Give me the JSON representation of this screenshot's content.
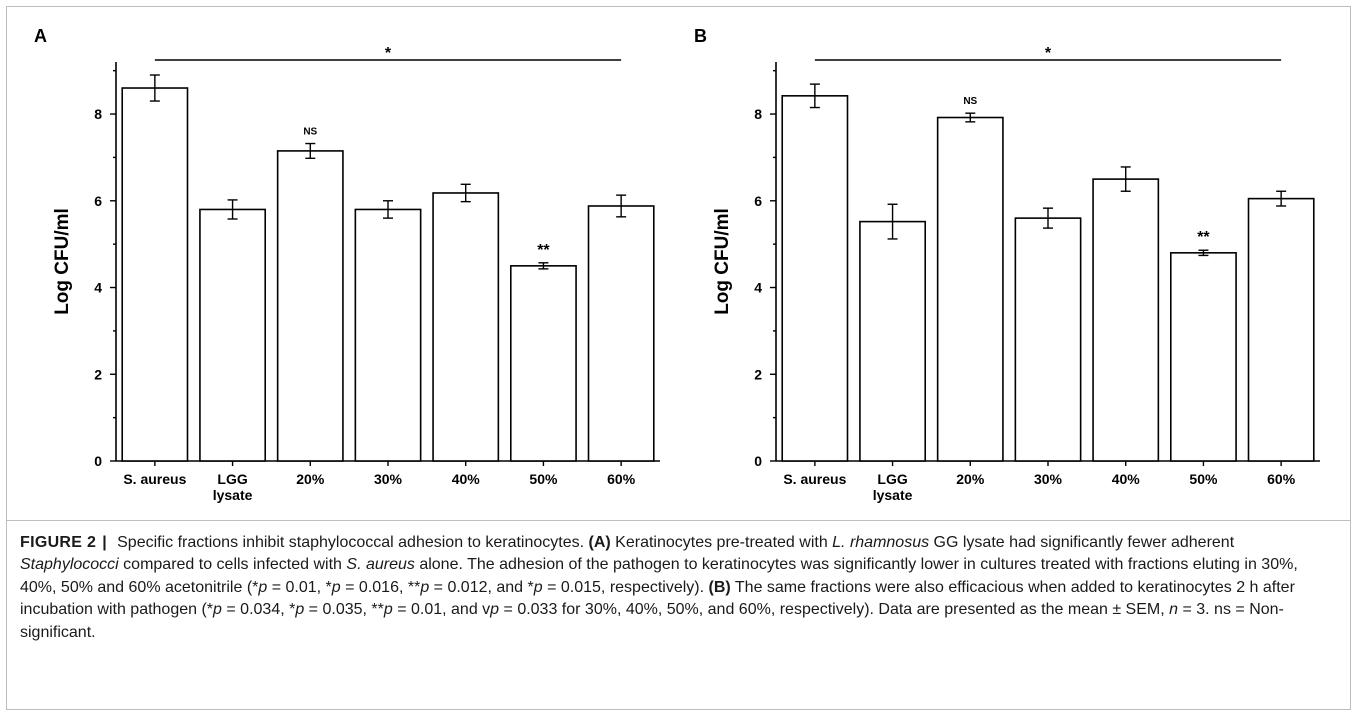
{
  "chart_data": [
    {
      "panel": "A",
      "type": "bar",
      "categories": [
        [
          "S. aureus"
        ],
        [
          "LGG",
          "lysate"
        ],
        [
          "20%"
        ],
        [
          "30%"
        ],
        [
          "40%"
        ],
        [
          "50%"
        ],
        [
          "60%"
        ]
      ],
      "values": [
        8.6,
        5.8,
        7.15,
        5.8,
        6.18,
        4.5,
        5.88
      ],
      "errors": [
        0.3,
        0.22,
        0.17,
        0.2,
        0.2,
        0.07,
        0.25
      ],
      "annotations": [
        "",
        "",
        "NS",
        "",
        "",
        "**",
        ""
      ],
      "significance_bar": "*",
      "ylabel": "Log CFU/ml",
      "ylim": [
        0,
        9.2
      ],
      "yticks": [
        0,
        2,
        4,
        6,
        8
      ],
      "grid": false
    },
    {
      "panel": "B",
      "type": "bar",
      "categories": [
        [
          "S. aureus"
        ],
        [
          "LGG",
          "lysate"
        ],
        [
          "20%"
        ],
        [
          "30%"
        ],
        [
          "40%"
        ],
        [
          "50%"
        ],
        [
          "60%"
        ]
      ],
      "values": [
        8.42,
        5.52,
        7.92,
        5.6,
        6.5,
        4.8,
        6.05
      ],
      "errors": [
        0.27,
        0.4,
        0.1,
        0.23,
        0.28,
        0.06,
        0.17
      ],
      "annotations": [
        "",
        "",
        "NS",
        "",
        "",
        "**",
        ""
      ],
      "significance_bar": "*",
      "ylabel": "Log CFU/ml",
      "ylim": [
        0,
        9.2
      ],
      "yticks": [
        0,
        2,
        4,
        6,
        8
      ],
      "grid": false
    }
  ],
  "caption": {
    "figure_label": "FIGURE 2",
    "separator": "|",
    "segments": [
      {
        "t": " Specific fractions inhibit staphylococcal adhesion to keratinocytes. "
      },
      {
        "t": "(A)",
        "b": true
      },
      {
        "t": " Keratinocytes pre-treated with "
      },
      {
        "t": "L. rhamnosus",
        "i": true
      },
      {
        "t": " GG lysate had significantly fewer adherent "
      },
      {
        "t": "Staphylococci",
        "i": true
      },
      {
        "t": " compared to cells infected with "
      },
      {
        "t": "S. aureus",
        "i": true
      },
      {
        "t": " alone. The adhesion of the pathogen to keratinocytes was significantly lower in cultures treated with fractions eluting in 30%, 40%, 50% and 60% acetonitrile (*"
      },
      {
        "t": "p",
        "i": true
      },
      {
        "t": " = 0.01, *"
      },
      {
        "t": "p",
        "i": true
      },
      {
        "t": " = 0.016, **"
      },
      {
        "t": "p",
        "i": true
      },
      {
        "t": " = 0.012, and *"
      },
      {
        "t": "p",
        "i": true
      },
      {
        "t": " = 0.015, respectively). "
      },
      {
        "t": "(B)",
        "b": true
      },
      {
        "t": " The same fractions were also efficacious when added to keratinocytes 2 h after incubation with pathogen (*"
      },
      {
        "t": "p",
        "i": true
      },
      {
        "t": " = 0.034, *"
      },
      {
        "t": "p",
        "i": true
      },
      {
        "t": " = 0.035, **"
      },
      {
        "t": "p",
        "i": true
      },
      {
        "t": " = 0.01, and v"
      },
      {
        "t": "p",
        "i": true
      },
      {
        "t": " = 0.033 for 30%, 40%, 50%, and 60%, respectively). Data are presented as the mean ± SEM, "
      },
      {
        "t": "n",
        "i": true
      },
      {
        "t": " = 3. ns = Non-significant."
      }
    ]
  }
}
